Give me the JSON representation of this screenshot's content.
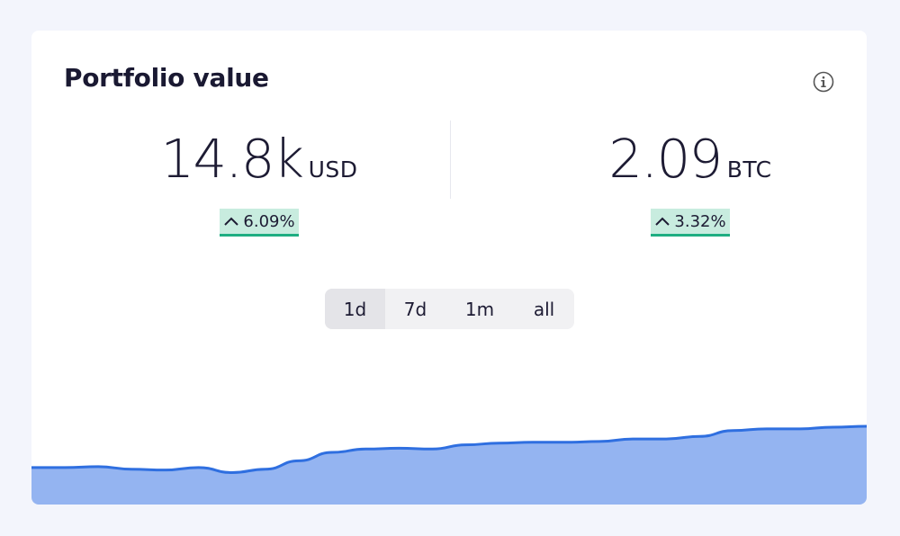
{
  "card": {
    "title": "Portfolio value",
    "info_icon": "info-circle-icon"
  },
  "stats": {
    "usd": {
      "value": "14.8k",
      "unit": "USD",
      "change": "6.09%",
      "direction": "up"
    },
    "btc": {
      "value": "2.09",
      "unit": "BTC",
      "change": "3.32%",
      "direction": "up"
    }
  },
  "range": {
    "options": [
      "1d",
      "7d",
      "1m",
      "all"
    ],
    "selected": "1d"
  },
  "colors": {
    "line": "#2f6fe0",
    "fill": "#94b4f1",
    "badge_bg": "#c8ecdf",
    "badge_border": "#1fae82"
  },
  "chart_data": {
    "type": "area",
    "title": "",
    "xlabel": "",
    "ylabel": "",
    "ylim": [
      0,
      100
    ],
    "grid": false,
    "values": [
      22,
      22,
      22.5,
      21,
      20.5,
      22,
      19,
      21,
      26,
      31,
      33,
      33.5,
      33,
      35.5,
      36.5,
      37,
      37,
      37.5,
      39,
      39,
      40.5,
      44,
      45,
      45,
      46,
      46.5
    ]
  }
}
